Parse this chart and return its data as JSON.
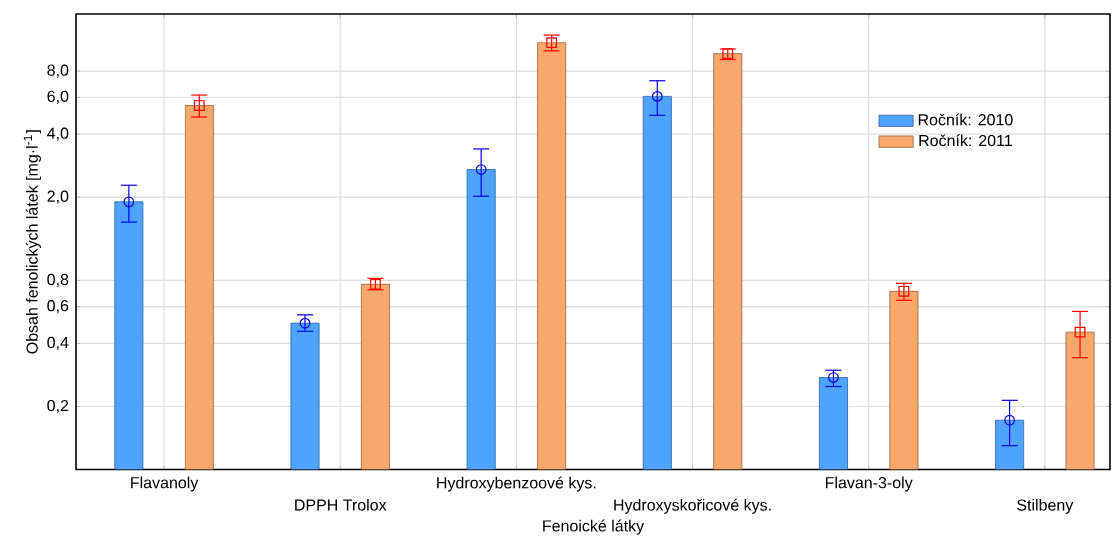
{
  "chart_data": {
    "type": "bar",
    "xlabel": "Fenoické látky",
    "ylabel": "Obsah fenolických látek [mg·l$^{-1}$]",
    "categories": [
      "Flavanoly",
      "DPPH Trolox",
      "Hydroxybenzoové kys.",
      "Hydroxyskořicové kys.",
      "Flavan-3-oly",
      "Stilbeny"
    ],
    "log": "y",
    "ylim": [
      0.1,
      15
    ],
    "yticks": [
      {
        "value": 0.2,
        "label": "0,2"
      },
      {
        "value": 0.4,
        "label": "0,4"
      },
      {
        "value": 0.6,
        "label": "0,6"
      },
      {
        "value": 0.8,
        "label": "0,8"
      },
      {
        "value": 2,
        "label": "2,0"
      },
      {
        "value": 4,
        "label": "4,0"
      },
      {
        "value": 6,
        "label": "6,0"
      },
      {
        "value": 8,
        "label": "8,0"
      }
    ],
    "grid": true,
    "legend": "top right",
    "series": [
      {
        "name": "Ročník: 2010",
        "color": "#4da3ff",
        "values": [
          1.9,
          0.5,
          2.71,
          6.06,
          0.275,
          0.172
        ]
      },
      {
        "name": "Ročník: 2011",
        "color": "#f7a86a",
        "values": [
          5.48,
          0.767,
          10.95,
          9.7,
          0.71,
          0.453
        ]
      },
      {
        "type": "scatter",
        "marker": "circle",
        "color": "#0000ff",
        "x": [
          "Flavanoly",
          "DPPH Trolox",
          "Hydroxybenzoové kys.",
          "Hydroxyskořicové kys.",
          "Flavan-3-oly",
          "Stilbeny"
        ],
        "values": [
          1.9,
          0.5,
          2.71,
          6.06,
          0.275,
          0.172
        ],
        "errors": [
          [
            1.52,
            2.28
          ],
          [
            0.457,
            0.548
          ],
          [
            2.02,
            3.4
          ],
          [
            4.92,
            7.2
          ],
          [
            0.249,
            0.298
          ],
          [
            0.13,
            0.214
          ]
        ]
      },
      {
        "type": "scatter",
        "marker": "square",
        "color": "#ff0000",
        "x": [
          "Flavanoly",
          "DPPH Trolox",
          "Hydroxybenzoové kys.",
          "Hydroxyskořicové kys.",
          "Flavan-3-oly",
          "Stilbeny"
        ],
        "values": [
          5.48,
          0.767,
          10.95,
          9.7,
          0.71,
          0.453
        ],
        "errors": [
          [
            4.83,
            6.15
          ],
          [
            0.722,
            0.819
          ],
          [
            10.0,
            11.9
          ],
          [
            9.08,
            10.2
          ],
          [
            0.643,
            0.775
          ],
          [
            0.342,
            0.569
          ]
        ]
      }
    ]
  }
}
